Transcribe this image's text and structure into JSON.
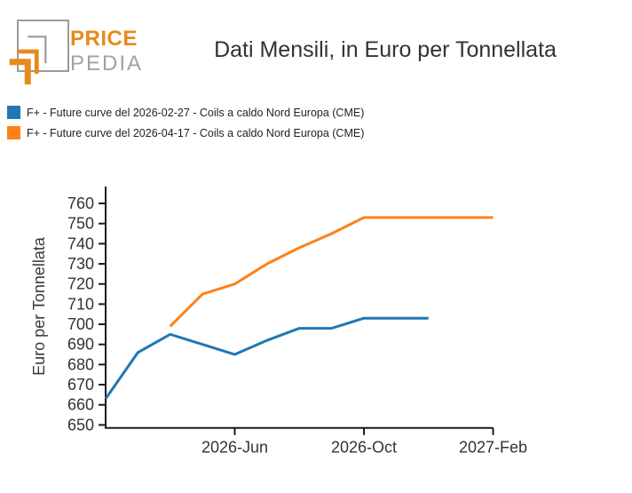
{
  "header": {
    "logo_line1": "PRICE",
    "logo_line2": "PEDIA",
    "logo_colors": {
      "orange": "#e78a1d",
      "gray": "#a2a2a2"
    },
    "title": "Dati Mensili, in Euro per Tonnellata"
  },
  "legend": [
    {
      "color": "#1f77b4",
      "label": "F+ - Future curve del 2026-02-27 - Coils a caldo Nord Europa (CME)"
    },
    {
      "color": "#fd8118",
      "label": "F+ - Future curve del 2026-04-17 - Coils a caldo Nord Europa (CME)"
    }
  ],
  "chart_data": {
    "type": "line",
    "title": "Dati Mensili, in Euro per Tonnellata",
    "xlabel": "",
    "ylabel": "Euro per Tonnellata",
    "ylim": [
      650,
      760
    ],
    "grid": false,
    "legend_position": "top-left",
    "yticks": [
      650,
      660,
      670,
      680,
      690,
      700,
      710,
      720,
      730,
      740,
      750,
      760
    ],
    "xticks": [
      {
        "label": "2026-Jun",
        "month": "2026-06"
      },
      {
        "label": "2026-Oct",
        "month": "2026-10"
      },
      {
        "label": "2027-Feb",
        "month": "2027-02"
      }
    ],
    "series": [
      {
        "name": "F+ - Future curve del 2026-02-27 - Coils a caldo Nord Europa (CME)",
        "color": "#1f77b4",
        "points": [
          {
            "month": "2026-02",
            "value": 663
          },
          {
            "month": "2026-03",
            "value": 686
          },
          {
            "month": "2026-04",
            "value": 695
          },
          {
            "month": "2026-05",
            "value": 690
          },
          {
            "month": "2026-06",
            "value": 685
          },
          {
            "month": "2026-07",
            "value": 692
          },
          {
            "month": "2026-08",
            "value": 698
          },
          {
            "month": "2026-09",
            "value": 698
          },
          {
            "month": "2026-10",
            "value": 703
          },
          {
            "month": "2026-11",
            "value": 703
          },
          {
            "month": "2026-12",
            "value": 703
          }
        ]
      },
      {
        "name": "F+ - Future curve del 2026-04-17 - Coils a caldo Nord Europa (CME)",
        "color": "#fd8118",
        "points": [
          {
            "month": "2026-04",
            "value": 699
          },
          {
            "month": "2026-05",
            "value": 715
          },
          {
            "month": "2026-06",
            "value": 720
          },
          {
            "month": "2026-07",
            "value": 730
          },
          {
            "month": "2026-08",
            "value": 738
          },
          {
            "month": "2026-09",
            "value": 745
          },
          {
            "month": "2026-10",
            "value": 753
          },
          {
            "month": "2026-11",
            "value": 753
          },
          {
            "month": "2026-12",
            "value": 753
          },
          {
            "month": "2027-01",
            "value": 753
          },
          {
            "month": "2027-02",
            "value": 753
          }
        ]
      }
    ]
  }
}
